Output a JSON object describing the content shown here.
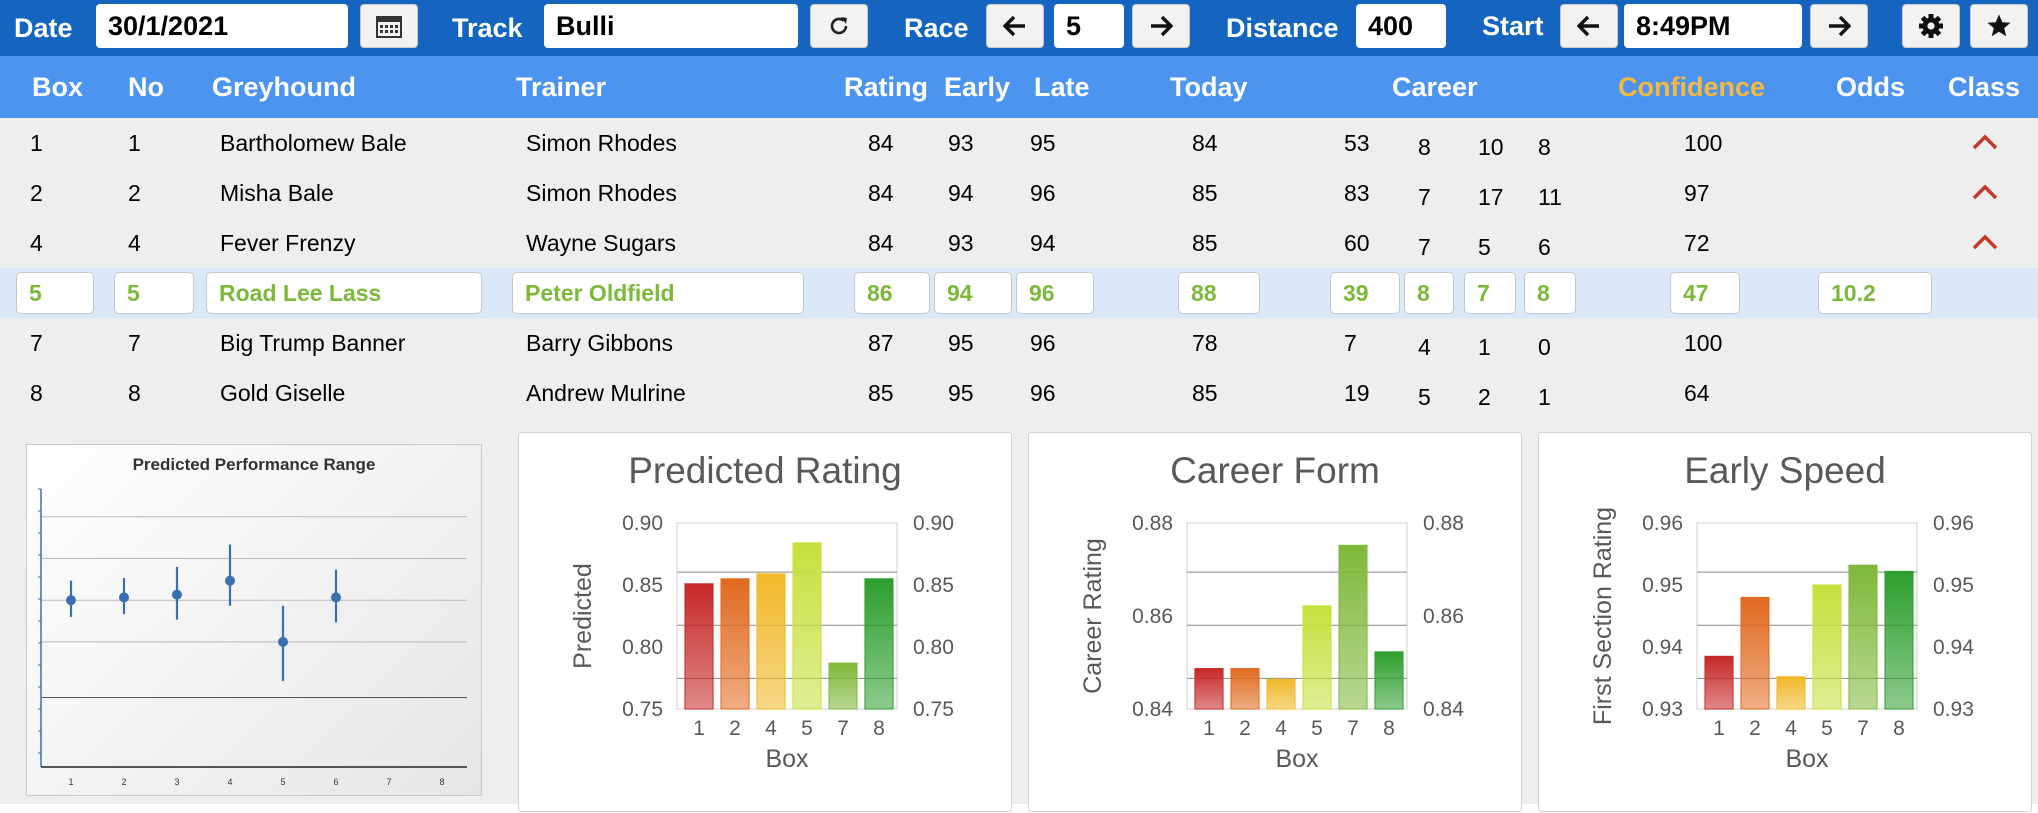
{
  "toolbar": {
    "date_label": "Date",
    "date_value": "30/1/2021",
    "track_label": "Track",
    "track_value": "Bulli",
    "race_label": "Race",
    "race_value": "5",
    "distance_label": "Distance",
    "distance_value": "400",
    "start_label": "Start",
    "start_value": "8:49PM",
    "icons": {
      "calendar": "calendar-icon",
      "refresh": "refresh-icon",
      "prev": "arrow-left-icon",
      "next": "arrow-right-icon",
      "settings": "gear-icon",
      "favorite": "star-icon"
    },
    "colors": {
      "bar": "#1565c0"
    }
  },
  "table": {
    "headers": {
      "box": "Box",
      "no": "No",
      "greyhound": "Greyhound",
      "trainer": "Trainer",
      "rating": "Rating",
      "early": "Early",
      "late": "Late",
      "today": "Today",
      "career": "Career",
      "confidence": "Confidence",
      "odds": "Odds",
      "class": "Class"
    },
    "header_colors": {
      "background": "#4d94f0",
      "confidence": "#f5b942"
    },
    "selected_text_color": "#7cb83a",
    "rows": [
      {
        "box": "1",
        "no": "1",
        "greyhound": "Bartholomew Bale",
        "trainer": "Simon Rhodes",
        "rating": "84",
        "early": "93",
        "late": "95",
        "today": "84",
        "career": [
          "53",
          "8",
          "10",
          "8"
        ],
        "confidence": "100",
        "odds": "",
        "class_up": true,
        "selected": false
      },
      {
        "box": "2",
        "no": "2",
        "greyhound": "Misha Bale",
        "trainer": "Simon Rhodes",
        "rating": "84",
        "early": "94",
        "late": "96",
        "today": "85",
        "career": [
          "83",
          "7",
          "17",
          "11"
        ],
        "confidence": "97",
        "odds": "",
        "class_up": true,
        "selected": false
      },
      {
        "box": "4",
        "no": "4",
        "greyhound": "Fever Frenzy",
        "trainer": "Wayne Sugars",
        "rating": "84",
        "early": "93",
        "late": "94",
        "today": "85",
        "career": [
          "60",
          "7",
          "5",
          "6"
        ],
        "confidence": "72",
        "odds": "",
        "class_up": true,
        "selected": false
      },
      {
        "box": "5",
        "no": "5",
        "greyhound": "Road Lee Lass",
        "trainer": "Peter Oldfield",
        "rating": "86",
        "early": "94",
        "late": "96",
        "today": "88",
        "career": [
          "39",
          "8",
          "7",
          "8"
        ],
        "confidence": "47",
        "odds": "10.2",
        "class_up": false,
        "selected": true
      },
      {
        "box": "7",
        "no": "7",
        "greyhound": "Big Trump Banner",
        "trainer": "Barry Gibbons",
        "rating": "87",
        "early": "95",
        "late": "96",
        "today": "78",
        "career": [
          "7",
          "4",
          "1",
          "0"
        ],
        "confidence": "100",
        "odds": "",
        "class_up": false,
        "selected": false
      },
      {
        "box": "8",
        "no": "8",
        "greyhound": "Gold Giselle",
        "trainer": "Andrew Mulrine",
        "rating": "85",
        "early": "95",
        "late": "96",
        "today": "85",
        "career": [
          "19",
          "5",
          "2",
          "1"
        ],
        "confidence": "64",
        "odds": "",
        "class_up": false,
        "selected": false
      }
    ]
  },
  "chart_data": [
    {
      "type": "scatter",
      "title": "Predicted Performance Range",
      "x_ticks": [
        "1",
        "2",
        "3",
        "4",
        "5",
        "6",
        "7",
        "8"
      ],
      "points": [
        {
          "x": 1,
          "y": 0.6,
          "low": 0.54,
          "high": 0.67
        },
        {
          "x": 2,
          "y": 0.61,
          "low": 0.55,
          "high": 0.68
        },
        {
          "x": 3,
          "y": 0.62,
          "low": 0.53,
          "high": 0.72
        },
        {
          "x": 4,
          "y": 0.67,
          "low": 0.58,
          "high": 0.8
        },
        {
          "x": 5,
          "y": 0.45,
          "low": 0.31,
          "high": 0.58
        },
        {
          "x": 6,
          "y": 0.61,
          "low": 0.52,
          "high": 0.71
        }
      ],
      "ylim": [
        0,
        1
      ],
      "grid": true,
      "color": "#3a6fb0"
    },
    {
      "type": "bar",
      "title": "Predicted Rating",
      "xlabel": "Box",
      "ylabel": "Predicted",
      "categories": [
        "1",
        "2",
        "4",
        "5",
        "7",
        "8"
      ],
      "values": [
        0.851,
        0.855,
        0.859,
        0.884,
        0.787,
        0.855
      ],
      "ylim": [
        0.75,
        0.9
      ],
      "yticks": [
        "0.90",
        "0.85",
        "0.80",
        "0.75"
      ],
      "grid": true,
      "right_axis": true
    },
    {
      "type": "bar",
      "title": "Career Form",
      "xlabel": "Box",
      "ylabel": "Career Rating",
      "categories": [
        "1",
        "2",
        "4",
        "5",
        "7",
        "8"
      ],
      "values": [
        0.8487,
        0.8487,
        0.8464,
        0.8622,
        0.8752,
        0.8523
      ],
      "ylim": [
        0.84,
        0.88
      ],
      "yticks": [
        "0.88",
        "0.86",
        "0.84"
      ],
      "grid": true,
      "right_axis": true
    },
    {
      "type": "bar",
      "title": "Early Speed",
      "xlabel": "Box",
      "ylabel": "First Section Rating",
      "categories": [
        "1",
        "2",
        "4",
        "5",
        "7",
        "8"
      ],
      "values": [
        0.9385,
        0.948,
        0.9352,
        0.95,
        0.9532,
        0.9522
      ],
      "ylim": [
        0.93,
        0.96
      ],
      "yticks": [
        "0.96",
        "0.95",
        "0.94",
        "0.93"
      ],
      "grid": true,
      "right_axis": true
    }
  ],
  "bar_colors": [
    "#c62828",
    "#e06a20",
    "#f0b828",
    "#c6e03c",
    "#7fb83a",
    "#2e9e2e"
  ]
}
